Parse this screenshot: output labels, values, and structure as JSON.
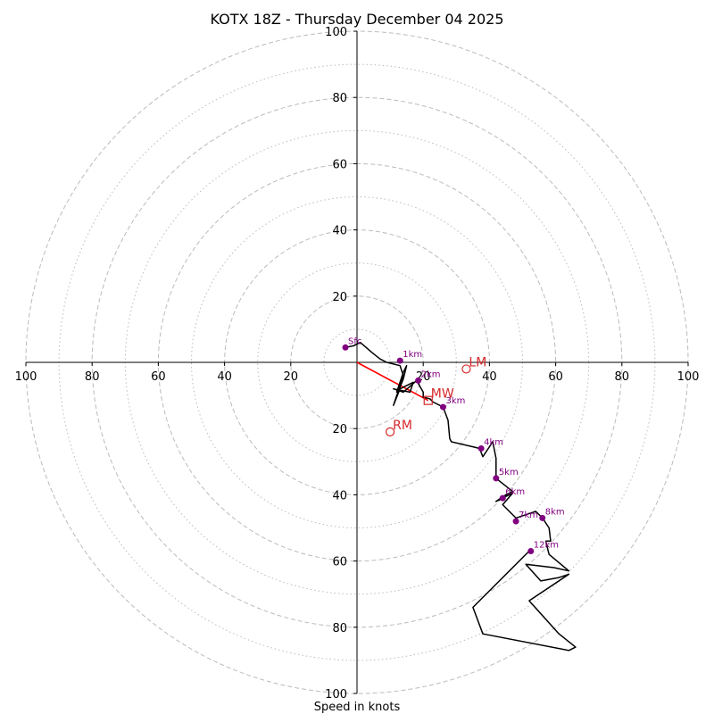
{
  "chart_data": {
    "type": "line",
    "title": "KOTX 18Z - Thursday December 04 2025",
    "xlabel": "Speed in knots",
    "ylabel": "",
    "units": "knots",
    "xlim": [
      -100,
      100
    ],
    "ylim": [
      -100,
      100
    ],
    "grid": true,
    "major_rings": [
      20,
      40,
      60,
      80,
      100
    ],
    "minor_rings": [
      10,
      30,
      50,
      70,
      90
    ],
    "x_tick_values": [
      -100,
      -80,
      -60,
      -40,
      -20,
      20,
      40,
      60,
      80,
      100
    ],
    "x_tick_labels": [
      "100",
      "80",
      "60",
      "40",
      "20",
      "20",
      "40",
      "60",
      "80",
      "100"
    ],
    "y_tick_values": [
      100,
      80,
      60,
      40,
      20,
      -20,
      -40,
      -60,
      -80,
      -100
    ],
    "y_tick_labels": [
      "100",
      "80",
      "60",
      "40",
      "20",
      "20",
      "40",
      "60",
      "80",
      "100"
    ],
    "hodograph": {
      "color": "#000000",
      "points": [
        [
          -3.5,
          4.5
        ],
        [
          -1,
          5
        ],
        [
          1,
          6
        ],
        [
          4.5,
          3
        ],
        [
          7,
          1
        ],
        [
          9,
          0
        ],
        [
          13,
          -1
        ],
        [
          14,
          -4
        ],
        [
          12,
          -9
        ],
        [
          14,
          -3
        ],
        [
          15,
          -1
        ],
        [
          14,
          -5
        ],
        [
          12,
          -10
        ],
        [
          11,
          -13
        ],
        [
          13,
          -8
        ],
        [
          17,
          -6
        ],
        [
          16,
          -9
        ],
        [
          11,
          -8
        ],
        [
          14,
          -9
        ],
        [
          18,
          -5.5
        ],
        [
          20,
          -9
        ],
        [
          20,
          -10.5
        ],
        [
          22,
          -11
        ],
        [
          23,
          -12
        ],
        [
          26,
          -13.5
        ],
        [
          27.5,
          -17.5
        ],
        [
          28,
          -23
        ],
        [
          28.5,
          -24
        ],
        [
          35,
          -25.5
        ],
        [
          37,
          -26
        ],
        [
          38,
          -28.5
        ],
        [
          41,
          -24
        ],
        [
          42,
          -29
        ],
        [
          42,
          -35
        ],
        [
          47,
          -39
        ],
        [
          45,
          -40
        ],
        [
          42,
          -42
        ],
        [
          47,
          -39.5
        ],
        [
          44,
          -43
        ],
        [
          48,
          -47
        ],
        [
          51,
          -46
        ],
        [
          54,
          -45
        ],
        [
          56,
          -47
        ],
        [
          58,
          -50
        ],
        [
          58.5,
          -54
        ],
        [
          57,
          -54
        ],
        [
          58,
          -58
        ],
        [
          64,
          -63
        ],
        [
          59.5,
          -62
        ],
        [
          51,
          -61
        ],
        [
          55.5,
          -66
        ],
        [
          61,
          -65
        ],
        [
          64,
          -64
        ],
        [
          52,
          -72
        ],
        [
          61,
          -82
        ],
        [
          66,
          -86
        ],
        [
          64,
          -87
        ],
        [
          38,
          -82
        ],
        [
          35,
          -74
        ],
        [
          52,
          -57
        ]
      ]
    },
    "height_markers": [
      {
        "label": "Sfc",
        "x": -3.5,
        "y": 4.5
      },
      {
        "label": "1km",
        "x": 13,
        "y": 0.5
      },
      {
        "label": "2km",
        "x": 18.5,
        "y": -5.5
      },
      {
        "label": "3km",
        "x": 26,
        "y": -13.5
      },
      {
        "label": "4km",
        "x": 37.5,
        "y": -26
      },
      {
        "label": "5km",
        "x": 42,
        "y": -35
      },
      {
        "label": "6km",
        "x": 44,
        "y": -41
      },
      {
        "label": "7km",
        "x": 48,
        "y": -48
      },
      {
        "label": "8km",
        "x": 56,
        "y": -47
      },
      {
        "label": "12km",
        "x": 52.5,
        "y": -57
      }
    ],
    "storm_motion": [
      {
        "label": "LM",
        "x": 33,
        "y": -2,
        "marker": "circle"
      },
      {
        "label": "MW",
        "x": 21.5,
        "y": -11.5,
        "marker": "square"
      },
      {
        "label": "RM",
        "x": 10,
        "y": -21,
        "marker": "circle"
      }
    ],
    "shear_vector": {
      "x0": 0,
      "y0": 0,
      "x1": 21.5,
      "y1": -11.5,
      "color": "#ff0000"
    }
  },
  "colors": {
    "grid": "#bbbbbb",
    "axis": "#000000",
    "hodograph": "#000000",
    "height_marker": "#800080",
    "storm_motion": "#d62728",
    "shear": "#ff0000"
  }
}
